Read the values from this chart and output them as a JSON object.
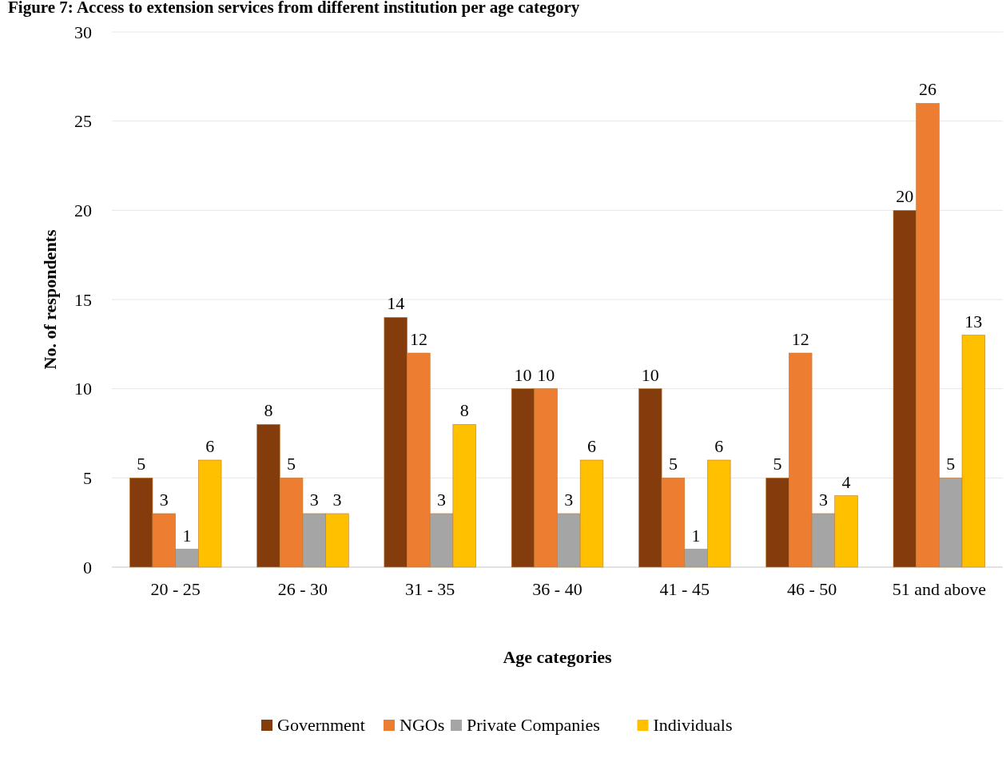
{
  "chart_data": {
    "type": "bar",
    "title": "Figure 7: Access to extension services from different institution per age category",
    "xlabel": "Age categories",
    "ylabel": "No. of respondents",
    "categories": [
      "20 - 25",
      "26 - 30",
      "31 - 35",
      "36 - 40",
      "41 - 45",
      "46 - 50",
      "51 and above"
    ],
    "series": [
      {
        "name": "Government",
        "color": "#843c0c",
        "values": [
          5,
          8,
          14,
          10,
          10,
          5,
          20
        ]
      },
      {
        "name": "NGOs",
        "color": "#ed7d31",
        "values": [
          3,
          5,
          12,
          10,
          5,
          12,
          26
        ]
      },
      {
        "name": "Private Companies",
        "color": "#a5a5a5",
        "values": [
          1,
          3,
          3,
          3,
          1,
          3,
          5
        ]
      },
      {
        "name": "Individuals",
        "color": "#ffc000",
        "values": [
          6,
          3,
          8,
          6,
          6,
          4,
          13
        ]
      }
    ],
    "ylim": [
      0,
      30
    ],
    "yticks": [
      0,
      5,
      10,
      15,
      20,
      25,
      30
    ],
    "grid": "y",
    "legend": "bottom",
    "data_labels": true
  }
}
